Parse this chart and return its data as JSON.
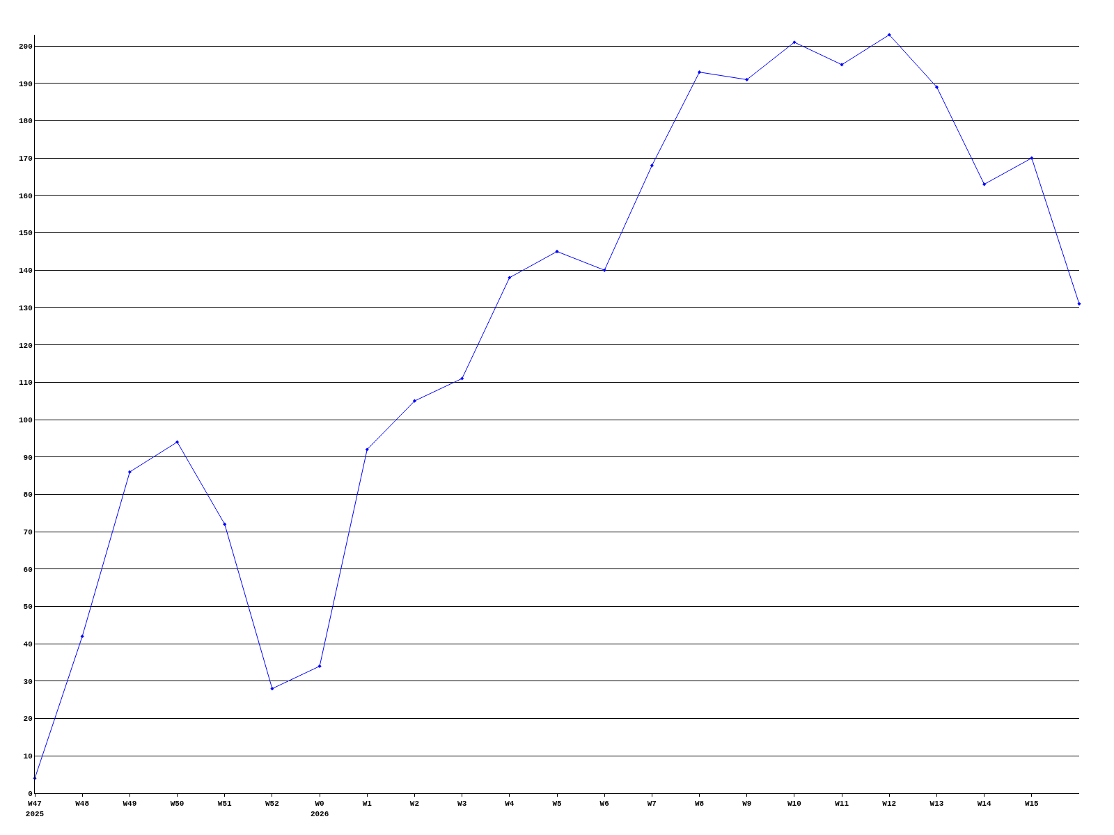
{
  "chart_data": {
    "type": "line",
    "categories": [
      "W47\n2025",
      "W48",
      "W49",
      "W50",
      "W51",
      "W52",
      "W0\n2026",
      "W1",
      "W2",
      "W3",
      "W4",
      "W5",
      "W6",
      "W7",
      "W8",
      "W9",
      "W10",
      "W11",
      "W12",
      "W13",
      "W14",
      "W15",
      null
    ],
    "series": [
      {
        "color": "#0000ff",
        "values": [
          4,
          42,
          86,
          94,
          72,
          28,
          34,
          92,
          105,
          111,
          138,
          145,
          140,
          168,
          193,
          191,
          201,
          195,
          203,
          189,
          163,
          170,
          131
        ]
      }
    ],
    "ylim": [
      0,
      203
    ],
    "yticks": [
      0,
      10,
      20,
      30,
      40,
      50,
      60,
      70,
      80,
      90,
      100,
      110,
      120,
      130,
      140,
      150,
      160,
      170,
      180,
      190,
      200
    ],
    "grid": "y",
    "marker": "diamond",
    "line_style": "solid"
  }
}
